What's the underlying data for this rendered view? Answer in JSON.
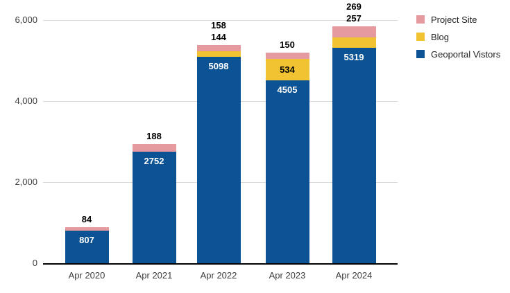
{
  "chart_data": {
    "type": "bar",
    "stacked": true,
    "title": "",
    "xlabel": "",
    "ylabel": "",
    "categories": [
      "Apr 2020",
      "Apr 2021",
      "Apr 2022",
      "Apr 2023",
      "Apr 2024"
    ],
    "series": [
      {
        "name": "Geoportal Vistors",
        "color": "#0b5394",
        "values": [
          807,
          2752,
          5098,
          4505,
          5319
        ]
      },
      {
        "name": "Blog",
        "color": "#f1c232",
        "values": [
          0,
          0,
          144,
          534,
          257
        ]
      },
      {
        "name": "Project Site",
        "color": "#e49a9e",
        "values": [
          84,
          188,
          158,
          150,
          269
        ]
      }
    ],
    "ylim": [
      0,
      6000
    ],
    "ytick_values": [
      0,
      2000,
      4000,
      6000
    ],
    "ytick_labels": [
      "0",
      "2,000",
      "4,000",
      "6,000"
    ],
    "grid": true,
    "legend_position": "right"
  },
  "legend": {
    "items": [
      {
        "label": "Project Site",
        "color": "#e49a9e"
      },
      {
        "label": "Blog",
        "color": "#f1c232"
      },
      {
        "label": "Geoportal Vistors",
        "color": "#0b5394"
      }
    ]
  }
}
